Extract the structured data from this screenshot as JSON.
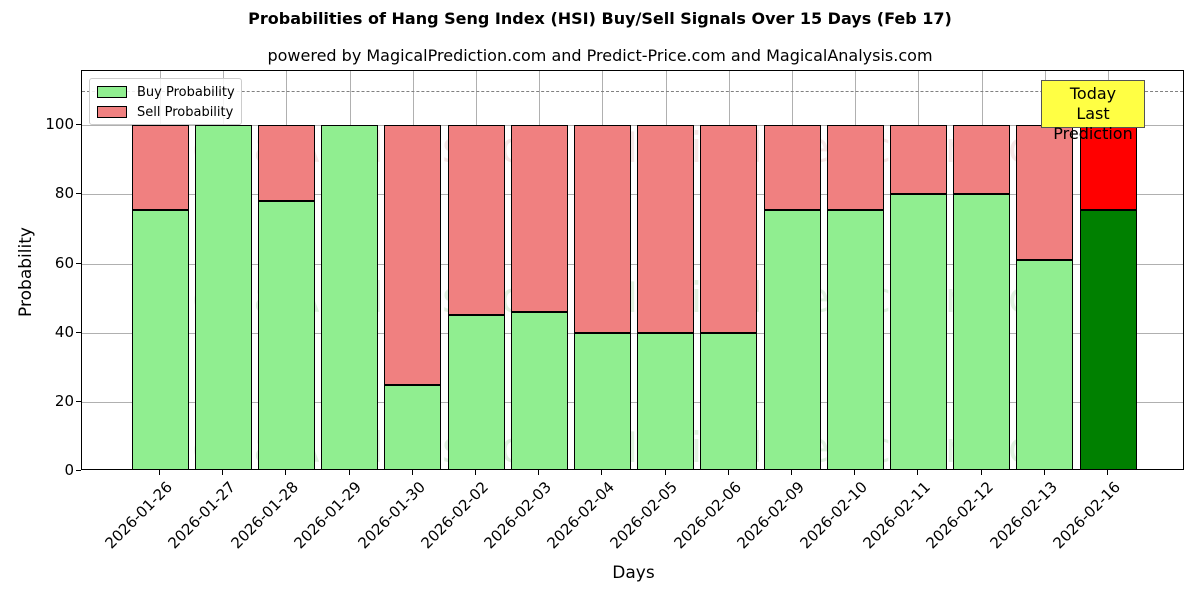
{
  "title": "Probabilities of Hang Seng Index (HSI) Buy/Sell Signals Over 15 Days (Feb 17)",
  "subtitle": "powered by MagicalPrediction.com and Predict-Price.com and MagicalAnalysis.com",
  "legend": {
    "buy": "Buy Probability",
    "sell": "Sell Probability"
  },
  "annotation": {
    "line1": "Today",
    "line2": "Last Prediction"
  },
  "watermarks": [
    "MagicalAnalysis.com",
    "MagicalPrediction.com"
  ],
  "colors": {
    "buy": "#90ee90",
    "sell": "#f08080",
    "today_buy": "#008000",
    "today_sell": "#ff0000",
    "annotation_bg": "#ffff44"
  },
  "chart_data": {
    "type": "bar",
    "stacked": true,
    "title": "Probabilities of Hang Seng Index (HSI) Buy/Sell Signals Over 15 Days (Feb 17)",
    "subtitle": "powered by MagicalPrediction.com and Predict-Price.com and MagicalAnalysis.com",
    "xlabel": "Days",
    "ylabel": "Probability",
    "ylim": [
      0,
      115
    ],
    "yticks": [
      0,
      20,
      40,
      60,
      80,
      100
    ],
    "grid": true,
    "legend_position": "upper left",
    "reference_line": {
      "y": 110,
      "style": "dashed"
    },
    "categories": [
      "2026-01-26",
      "2026-01-27",
      "2026-01-28",
      "2026-01-29",
      "2026-01-30",
      "2026-02-02",
      "2026-02-03",
      "2026-02-04",
      "2026-02-05",
      "2026-02-06",
      "2026-02-09",
      "2026-02-10",
      "2026-02-11",
      "2026-02-12",
      "2026-02-13",
      "2026-02-16"
    ],
    "series": [
      {
        "name": "Buy Probability",
        "values": [
          75.5,
          100,
          78,
          100,
          25,
          45,
          46,
          40,
          40,
          40,
          75.5,
          75.5,
          80,
          80,
          61,
          75.5
        ]
      },
      {
        "name": "Sell Probability",
        "values": [
          24.5,
          0,
          22,
          0,
          75,
          55,
          54,
          60,
          60,
          60,
          24.5,
          24.5,
          20,
          20,
          39,
          24.5
        ]
      }
    ],
    "highlight": {
      "category": "2026-02-16",
      "label": "Today\nLast Prediction"
    }
  }
}
